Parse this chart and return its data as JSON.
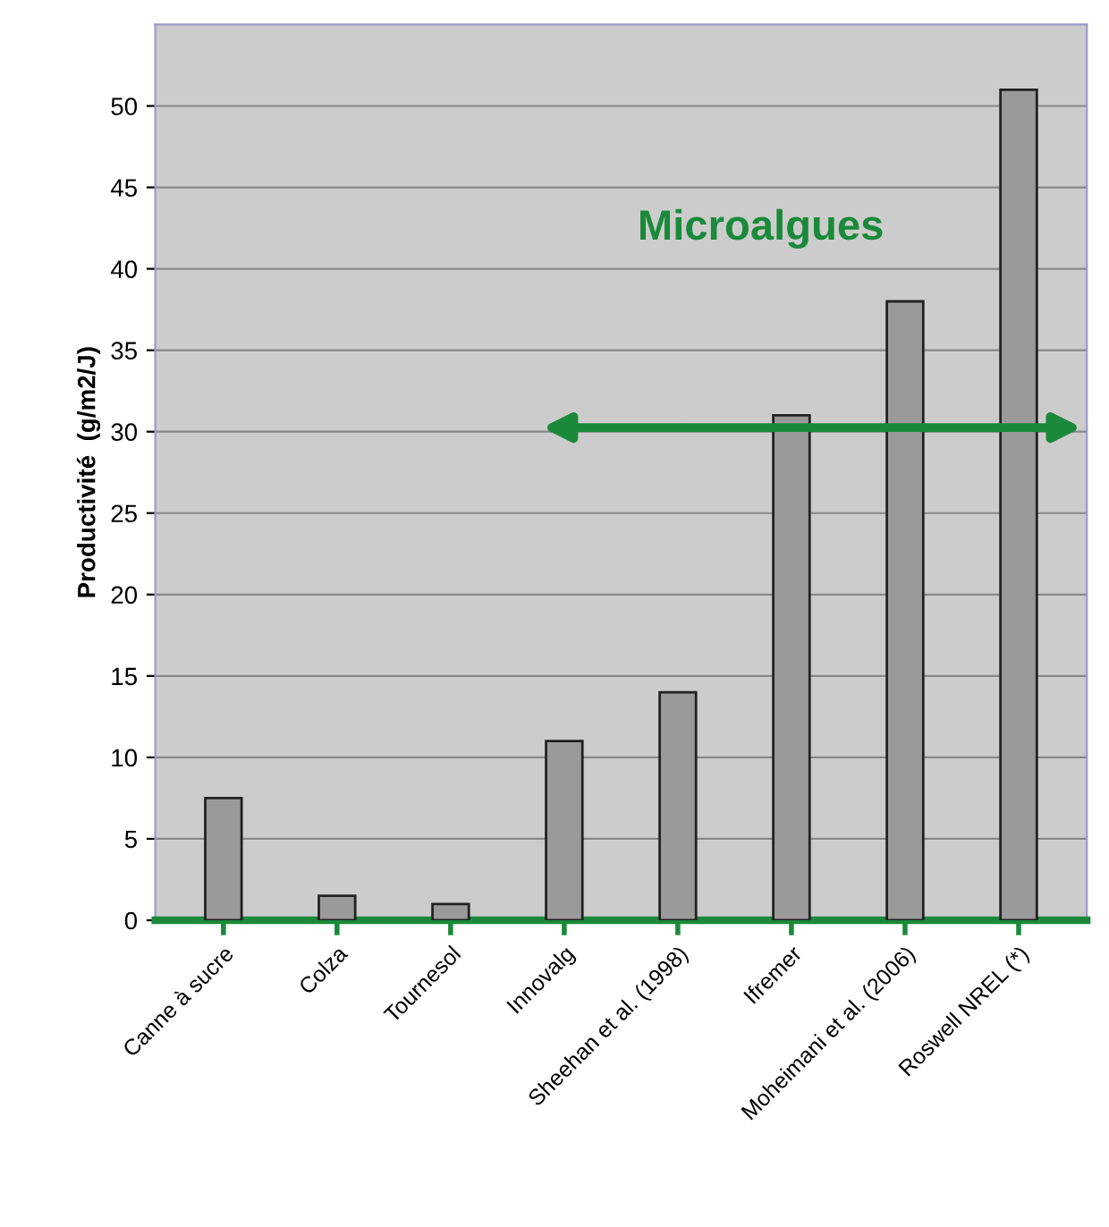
{
  "chart_data": {
    "type": "bar",
    "categories": [
      "Canne à sucre",
      "Colza",
      "Tournesol",
      "Innovalg",
      "Sheehan et al. (1998)",
      "Ifremer",
      "Moheimani et al. (2006)",
      "Roswell NREL (*)"
    ],
    "values": [
      7.5,
      1.5,
      1,
      11,
      14,
      31,
      38,
      51
    ],
    "color": "#9a9a9a",
    "ylabel": "Productivité  (g/m2/J)",
    "annotations": [
      "Microalgues"
    ],
    "ylim": [
      0,
      55
    ],
    "yticks": [
      0,
      5,
      10,
      15,
      20,
      25,
      30,
      35,
      40,
      45,
      50
    ],
    "grid": "y"
  }
}
